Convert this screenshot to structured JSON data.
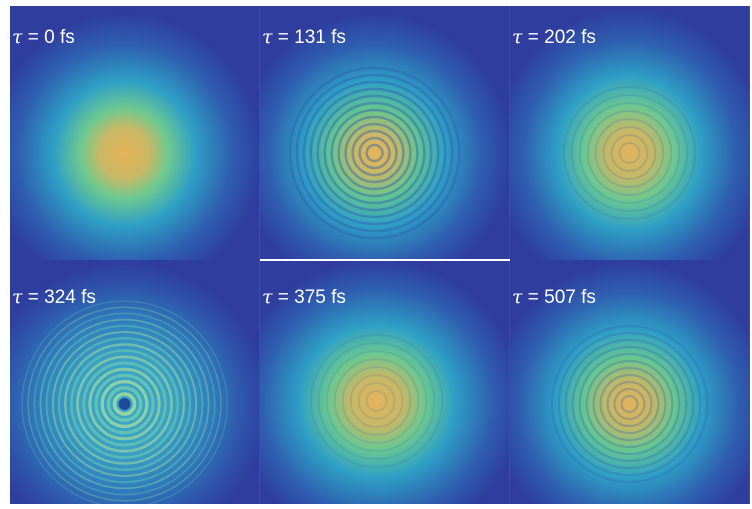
{
  "figure": {
    "panels": [
      {
        "id": "p1",
        "symbol": "τ",
        "rest": " = 0 fs",
        "delay_fs": 0,
        "fringes": "none"
      },
      {
        "id": "p2",
        "symbol": "τ",
        "rest": " = 131 fs",
        "delay_fs": 131,
        "fringes": "strong-center"
      },
      {
        "id": "p3",
        "symbol": "τ",
        "rest": " = 202 fs",
        "delay_fs": 202,
        "fringes": "faint"
      },
      {
        "id": "p4",
        "symbol": "τ",
        "rest": " = 324 fs",
        "delay_fs": 324,
        "fringes": "full-rings"
      },
      {
        "id": "p5",
        "symbol": "τ",
        "rest": " = 375 fs",
        "delay_fs": 375,
        "fringes": "faint"
      },
      {
        "id": "p6",
        "symbol": "τ",
        "rest": " = 507 fs",
        "delay_fs": 507,
        "fringes": "medium"
      }
    ],
    "colors": {
      "background": "#2f3e9e",
      "mid": "#2fa4c8",
      "inner": "#7fcf8a",
      "core": "#e0b060",
      "label": "#ffffff"
    }
  }
}
